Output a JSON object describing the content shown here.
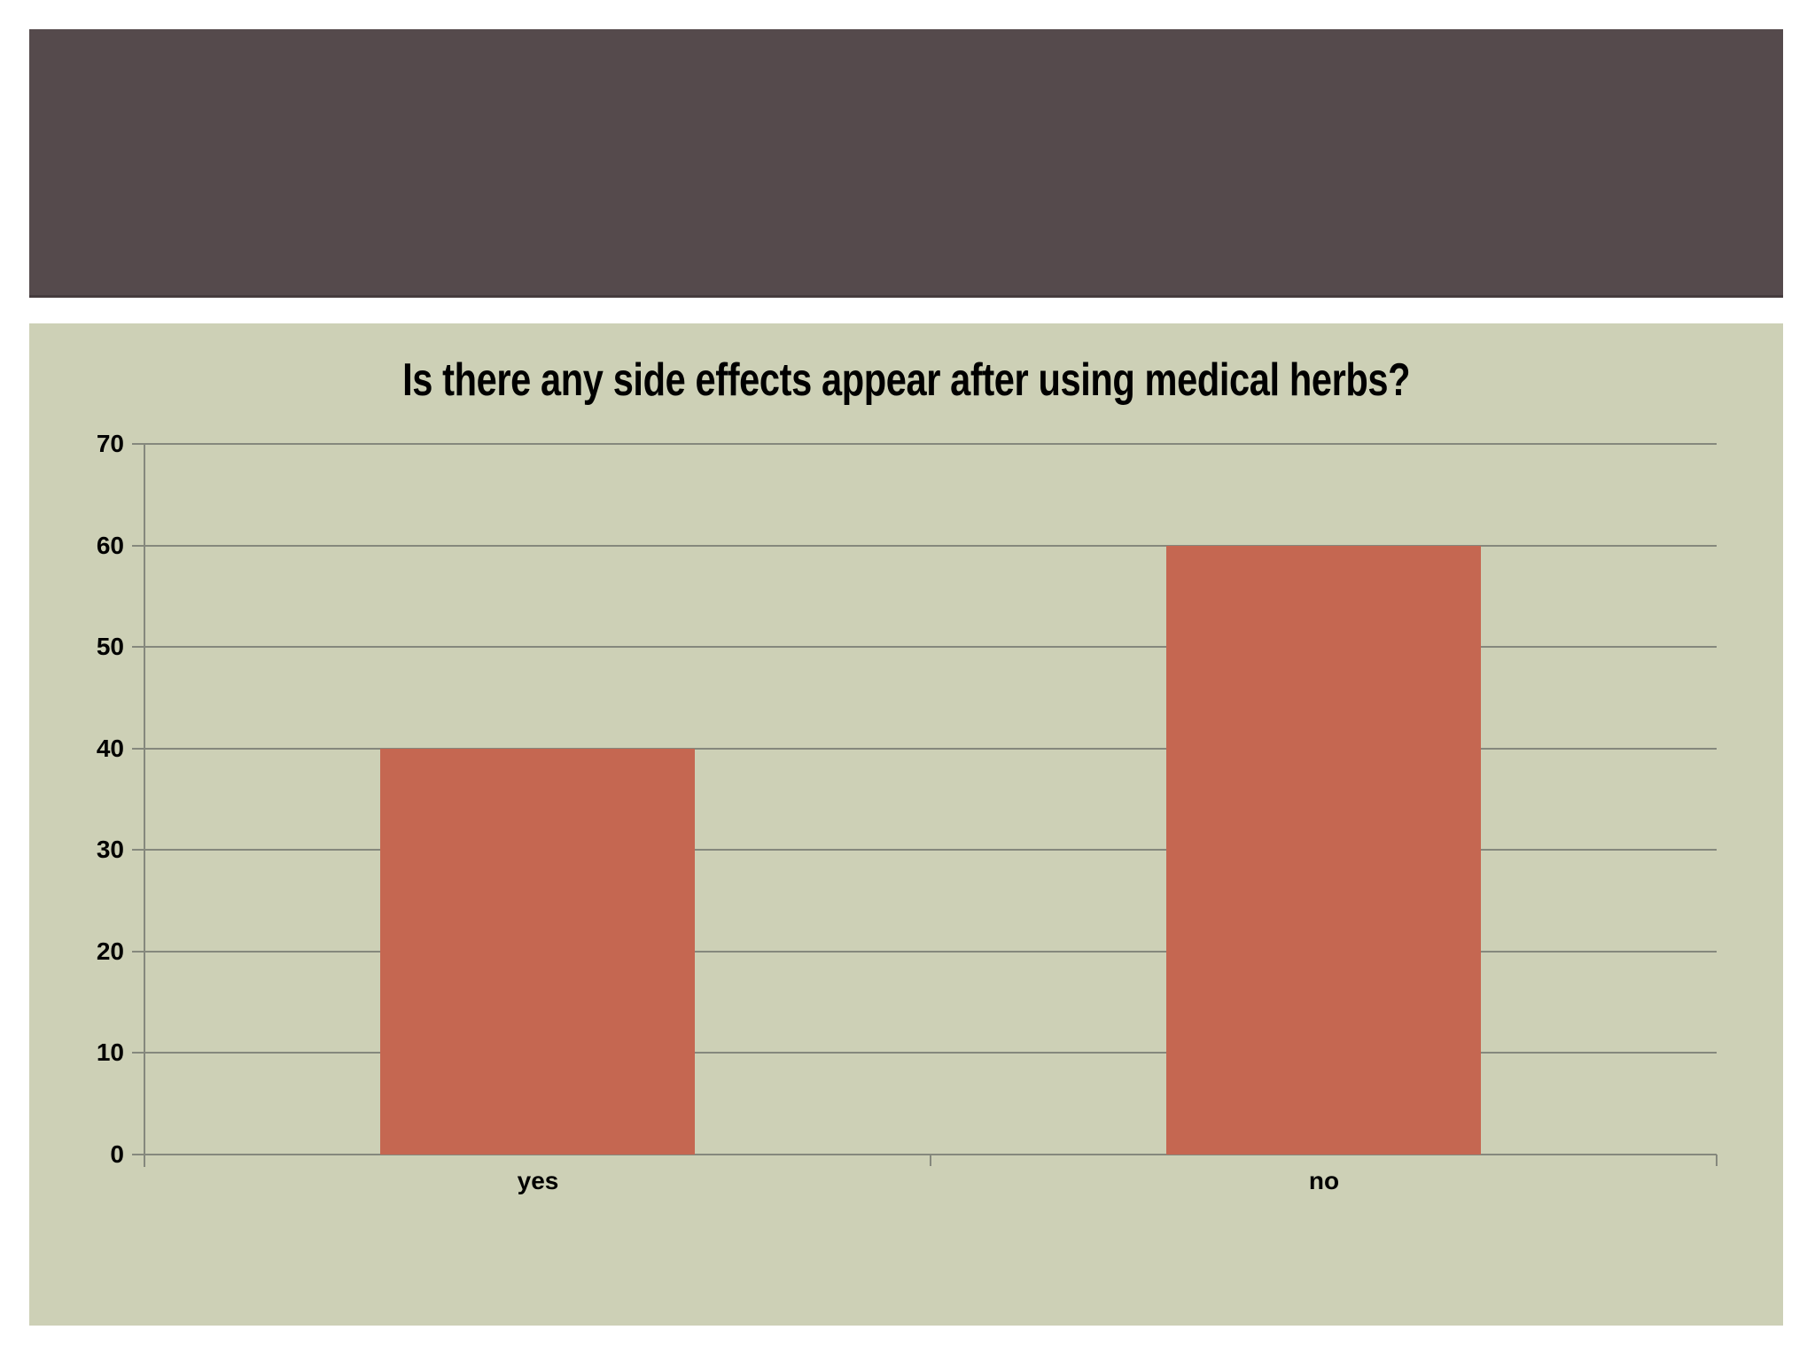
{
  "slide": {
    "header_band_text": ""
  },
  "chart_data": {
    "type": "bar",
    "title": "Is there any side effects appear after using medical herbs?",
    "categories": [
      "yes",
      "no"
    ],
    "values": [
      40,
      60
    ],
    "xlabel": "",
    "ylabel": "",
    "ylim": [
      0,
      70
    ],
    "ytick_step": 10,
    "grid": "horizontal",
    "legend_position": "none"
  },
  "colors": {
    "page_background": "#ffffff",
    "header_bar": "#554a4c",
    "chart_background": "#cdd0b6",
    "bar_fill": "#c56751",
    "gridline": "#85887d",
    "text": "#000000"
  }
}
